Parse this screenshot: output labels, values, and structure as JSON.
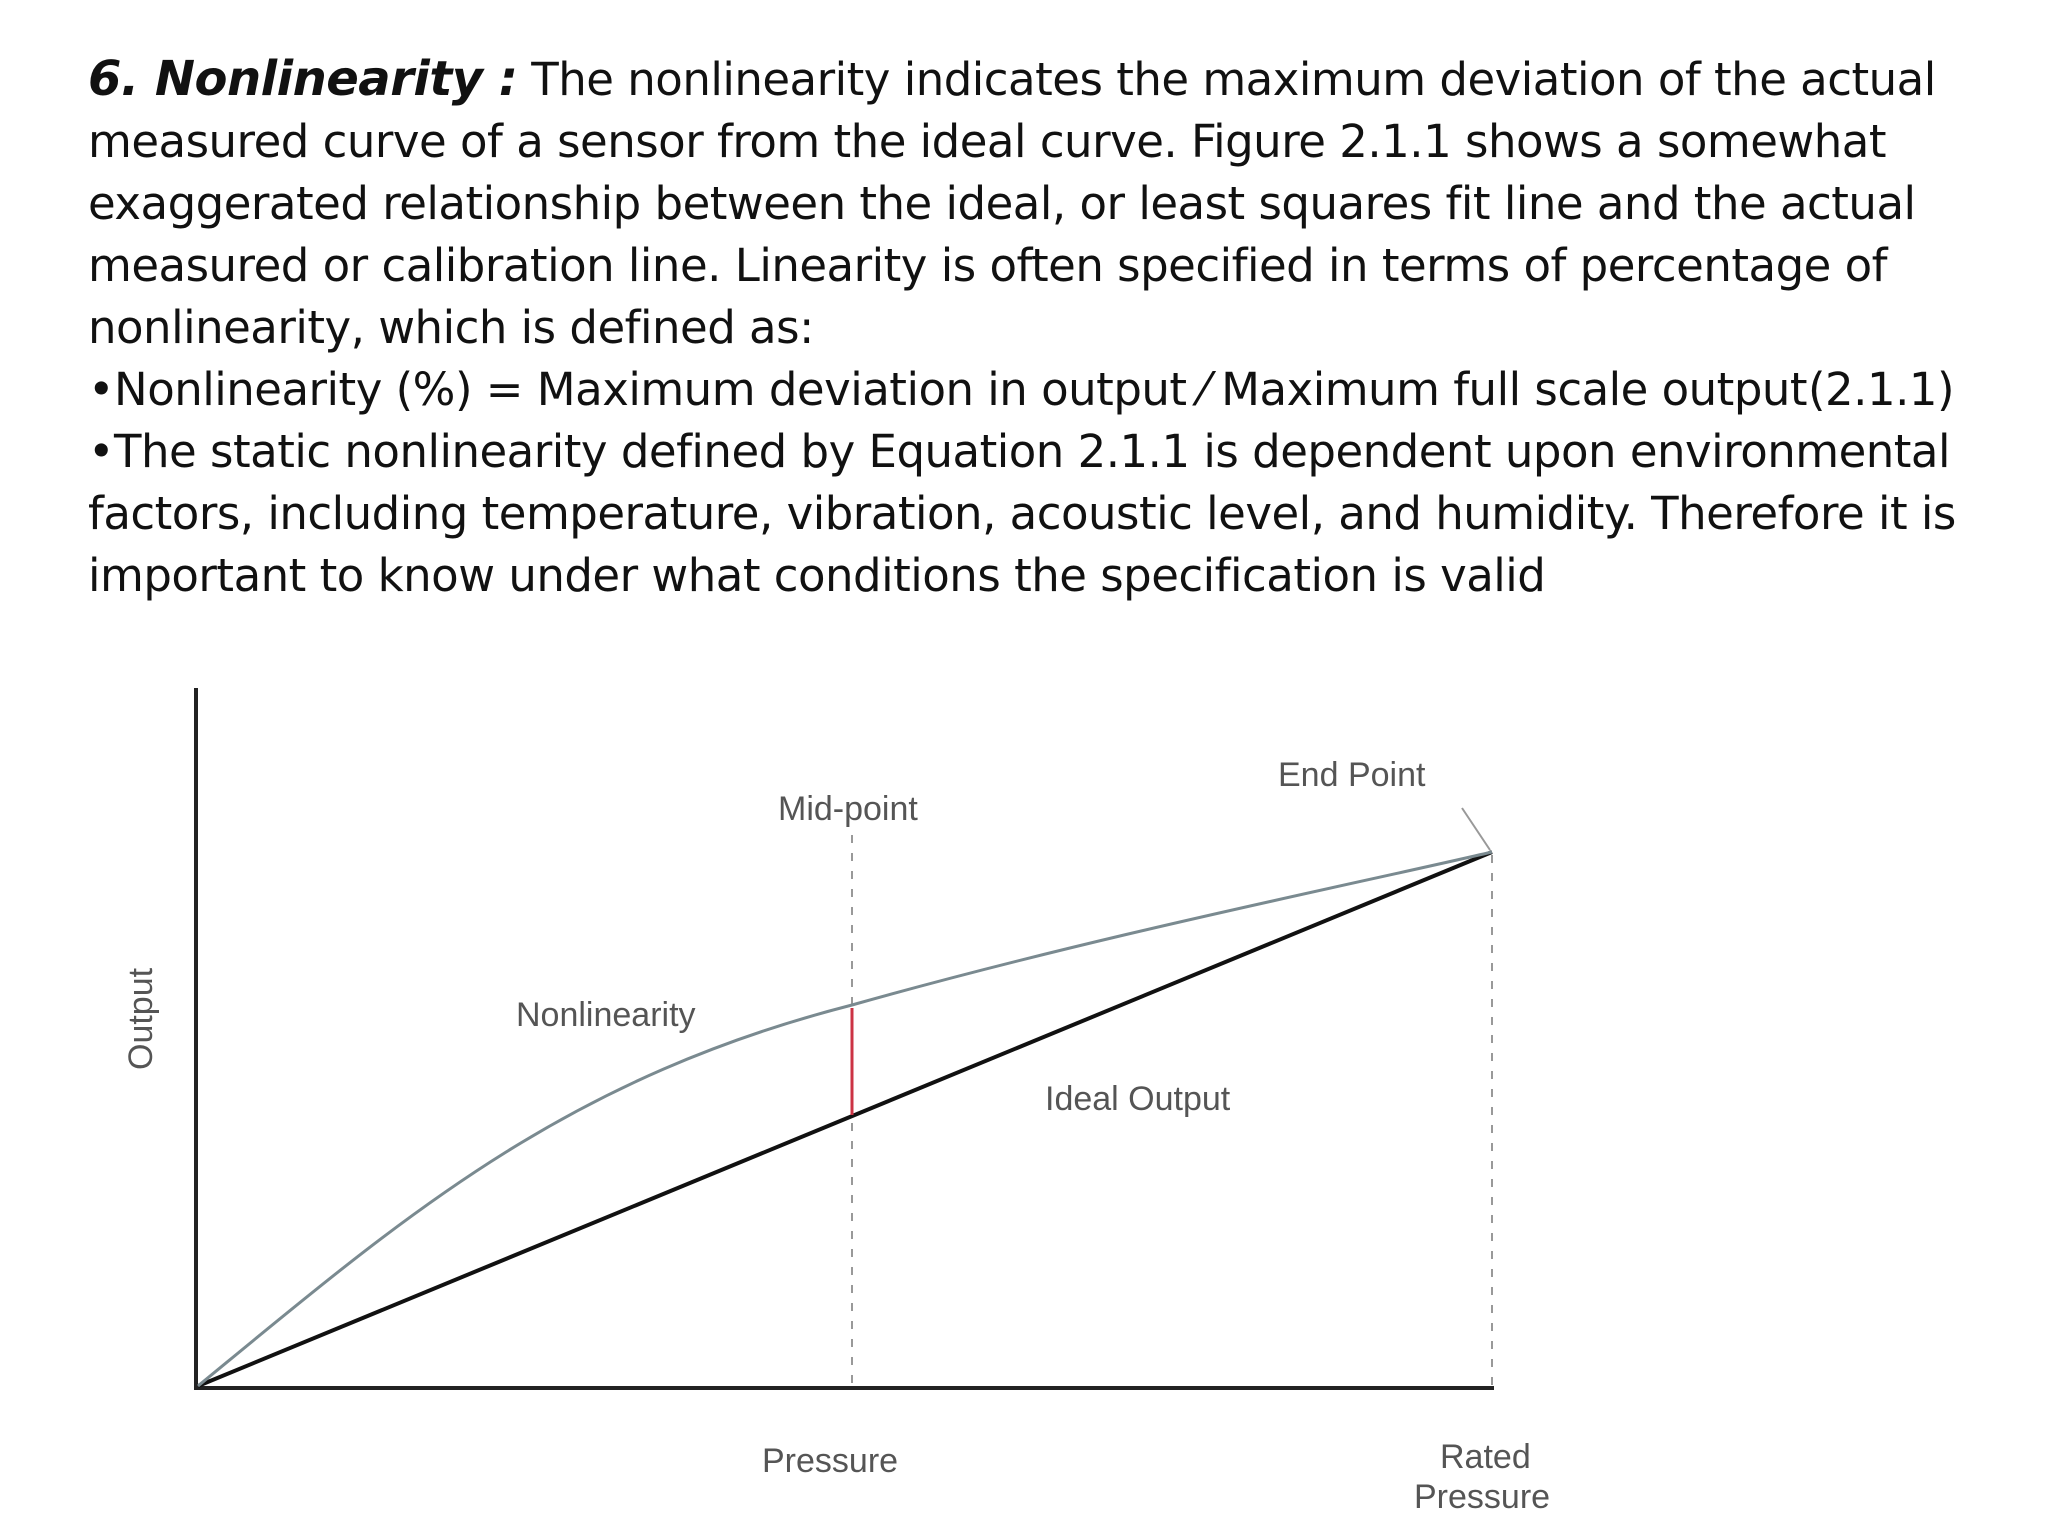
{
  "text": {
    "heading": "6. Nonlinearity :",
    "intro_lines": [
      "The nonlinearity indicates the maximum deviation of the actual",
      "measured curve of a sensor from the ideal curve. Figure 2.1.1 shows a somewhat",
      "exaggerated relationship between the ideal, or least squares fit line and the actual",
      "measured or calibration line. Linearity is often specified in terms of percentage of",
      "nonlinearity, which is defined as:"
    ],
    "bullet1": "•Nonlinearity (%) = Maximum deviation in output ⁄ Maximum full scale output",
    "equation_number": "(2.1.1)",
    "bullet2_lines": [
      "•The static nonlinearity defined by Equation 2.1.1 is dependent upon environmental",
      "factors, including temperature, vibration, acoustic  level, and humidity. Therefore it is",
      "important to know under what conditions the specification is valid"
    ]
  },
  "figure": {
    "ylabel": "Output",
    "xlabel": "Pressure",
    "rated_line1": "Rated",
    "rated_line2": "Pressure",
    "label_end_point": "End Point",
    "label_mid_point": "Mid-point",
    "label_nonlinearity": "Nonlinearity",
    "label_ideal_output": "Ideal Output",
    "colors": {
      "axis": "#222222",
      "curve": "#7a8a90",
      "ideal": "#111111",
      "deviation": "#cc3344",
      "guide": "#999999"
    }
  }
}
